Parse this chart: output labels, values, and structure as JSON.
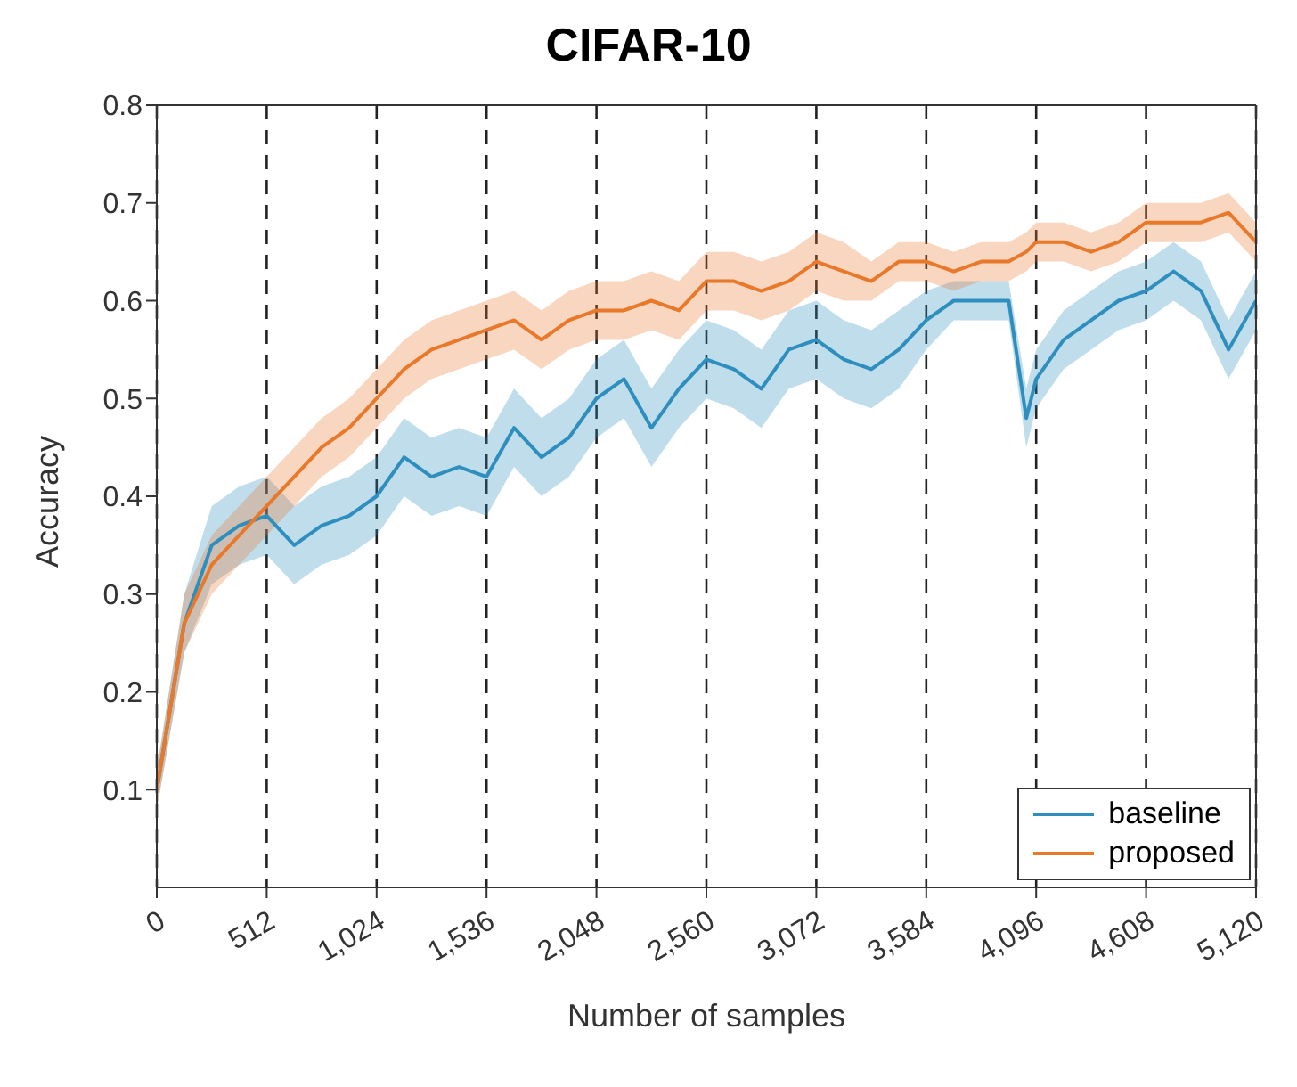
{
  "chart_data": {
    "type": "line",
    "title": "CIFAR-10",
    "xlabel": "Number of samples",
    "ylabel": "Accuracy",
    "x": [
      0,
      128,
      256,
      384,
      512,
      640,
      768,
      896,
      1024,
      1152,
      1280,
      1408,
      1536,
      1664,
      1792,
      1920,
      2048,
      2176,
      2304,
      2432,
      2560,
      2688,
      2816,
      2944,
      3072,
      3200,
      3328,
      3456,
      3584,
      3712,
      3840,
      3968,
      4050,
      4096,
      4224,
      4352,
      4480,
      4608,
      4736,
      4864,
      4992,
      5120
    ],
    "series": [
      {
        "name": "baseline",
        "color": "#2e8fbf",
        "values": [
          0.1,
          0.27,
          0.35,
          0.37,
          0.38,
          0.35,
          0.37,
          0.38,
          0.4,
          0.44,
          0.42,
          0.43,
          0.42,
          0.47,
          0.44,
          0.46,
          0.5,
          0.52,
          0.47,
          0.51,
          0.54,
          0.53,
          0.51,
          0.55,
          0.56,
          0.54,
          0.53,
          0.55,
          0.58,
          0.6,
          0.6,
          0.6,
          0.48,
          0.52,
          0.56,
          0.58,
          0.6,
          0.61,
          0.63,
          0.61,
          0.55,
          0.6
        ],
        "lower": [
          0.08,
          0.24,
          0.31,
          0.33,
          0.34,
          0.31,
          0.33,
          0.34,
          0.36,
          0.4,
          0.38,
          0.39,
          0.38,
          0.43,
          0.4,
          0.42,
          0.46,
          0.48,
          0.43,
          0.47,
          0.5,
          0.49,
          0.47,
          0.51,
          0.52,
          0.5,
          0.49,
          0.51,
          0.55,
          0.58,
          0.58,
          0.58,
          0.45,
          0.49,
          0.53,
          0.55,
          0.57,
          0.58,
          0.6,
          0.58,
          0.52,
          0.57
        ],
        "upper": [
          0.12,
          0.3,
          0.39,
          0.41,
          0.42,
          0.39,
          0.41,
          0.42,
          0.44,
          0.48,
          0.46,
          0.47,
          0.46,
          0.51,
          0.48,
          0.5,
          0.54,
          0.56,
          0.51,
          0.55,
          0.58,
          0.57,
          0.55,
          0.59,
          0.6,
          0.58,
          0.57,
          0.59,
          0.61,
          0.62,
          0.62,
          0.62,
          0.51,
          0.55,
          0.59,
          0.61,
          0.63,
          0.64,
          0.66,
          0.64,
          0.58,
          0.63
        ]
      },
      {
        "name": "proposed",
        "color": "#e8782a",
        "values": [
          0.1,
          0.27,
          0.33,
          0.36,
          0.39,
          0.42,
          0.45,
          0.47,
          0.5,
          0.53,
          0.55,
          0.56,
          0.57,
          0.58,
          0.56,
          0.58,
          0.59,
          0.59,
          0.6,
          0.59,
          0.62,
          0.62,
          0.61,
          0.62,
          0.64,
          0.63,
          0.62,
          0.64,
          0.64,
          0.63,
          0.64,
          0.64,
          0.65,
          0.66,
          0.66,
          0.65,
          0.66,
          0.68,
          0.68,
          0.68,
          0.69,
          0.66
        ],
        "lower": [
          0.08,
          0.24,
          0.3,
          0.33,
          0.36,
          0.39,
          0.42,
          0.44,
          0.47,
          0.5,
          0.52,
          0.53,
          0.54,
          0.55,
          0.53,
          0.55,
          0.56,
          0.56,
          0.57,
          0.56,
          0.59,
          0.59,
          0.58,
          0.59,
          0.61,
          0.6,
          0.6,
          0.62,
          0.62,
          0.61,
          0.62,
          0.62,
          0.63,
          0.64,
          0.64,
          0.63,
          0.64,
          0.66,
          0.66,
          0.66,
          0.67,
          0.64
        ],
        "upper": [
          0.12,
          0.3,
          0.36,
          0.39,
          0.42,
          0.45,
          0.48,
          0.5,
          0.53,
          0.56,
          0.58,
          0.59,
          0.6,
          0.61,
          0.59,
          0.61,
          0.62,
          0.62,
          0.63,
          0.62,
          0.65,
          0.65,
          0.64,
          0.65,
          0.67,
          0.66,
          0.64,
          0.66,
          0.66,
          0.65,
          0.66,
          0.66,
          0.67,
          0.68,
          0.68,
          0.67,
          0.68,
          0.7,
          0.7,
          0.7,
          0.71,
          0.68
        ]
      }
    ],
    "xlim": [
      0,
      5120
    ],
    "xticks": [
      0,
      {
        "value": 512,
        "label": "512"
      },
      {
        "value": 1024,
        "label": "1,024"
      },
      {
        "value": 1536,
        "label": "1,536"
      },
      {
        "value": 2048,
        "label": "2,048"
      },
      {
        "value": 2560,
        "label": "2,560"
      },
      {
        "value": 3072,
        "label": "3,072"
      },
      {
        "value": 3584,
        "label": "3,584"
      },
      {
        "value": 4096,
        "label": "4,096"
      },
      {
        "value": 4608,
        "label": "4,608"
      },
      {
        "value": 5120,
        "label": "5,120"
      }
    ],
    "ylim": [
      0,
      0.8
    ],
    "yticks": [
      0.1,
      0.2,
      0.3,
      0.4,
      0.5,
      0.6,
      0.7,
      0.8
    ],
    "grid": "x",
    "legend": "bottom right",
    "line_style": "solid",
    "marker": "none"
  }
}
